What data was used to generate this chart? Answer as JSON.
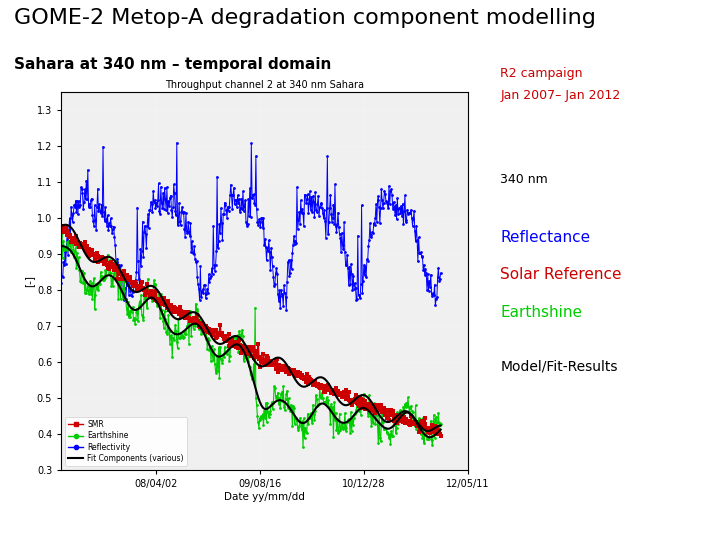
{
  "title": "GOME-2 Metop-A degradation component modelling",
  "subtitle": "Sahara at 340 nm – temporal domain",
  "background_color": "#ffffff",
  "title_fontsize": 16,
  "subtitle_fontsize": 11,
  "annotation_r2_line1": "R2 campaign",
  "annotation_r2_line2": "Jan 2007– Jan 2012",
  "annotation_340": "340 nm",
  "annotation_reflectance": "Reflectance",
  "annotation_solar": "Solar Reference",
  "annotation_earthshine": "Earthshine",
  "annotation_model": "Model/Fit-Results",
  "color_reflectance": "#0000ff",
  "color_solar": "#cc0000",
  "color_earthshine": "#00cc00",
  "color_model": "#000000",
  "color_r2": "#cc0000",
  "subplot_title": "Throughput channel 2 at 340 nm Sahara",
  "xlabel": "Date yy/mm/dd",
  "ylabel": "[-]",
  "xtick_labels": [
    "08/04/02",
    "09/08/16",
    "10/12/28",
    "12/05/11"
  ],
  "ytick_labels": [
    "0.3",
    "0.4",
    "0.5",
    "0.6",
    "0.7",
    "0.8",
    "0.9",
    "1.0",
    "1.1",
    "1.2",
    "1.3"
  ],
  "ylim": [
    0.3,
    1.35
  ],
  "legend_labels": [
    "SMR",
    "Earthshine",
    "Reflectivity",
    "Fit Components (various)"
  ],
  "legend_colors": [
    "#cc0000",
    "#00cc00",
    "#0000ff",
    "#000000"
  ]
}
